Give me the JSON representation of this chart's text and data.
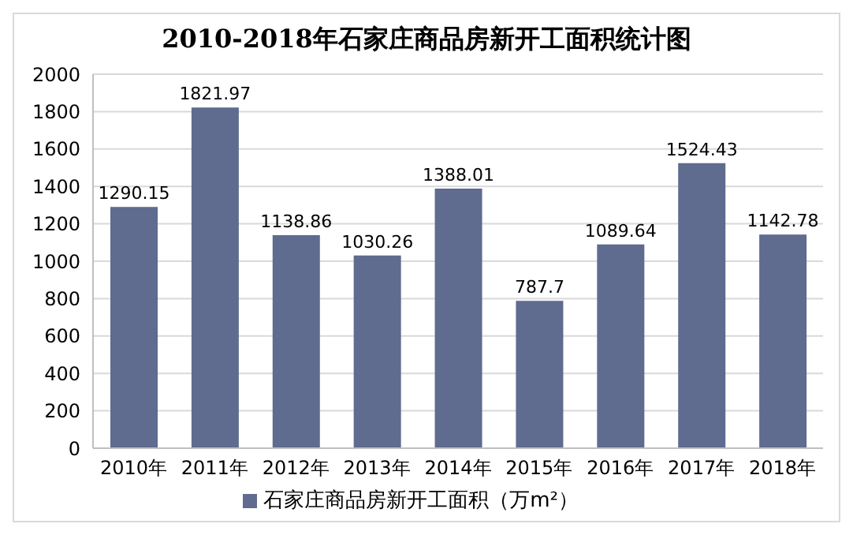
{
  "chart_data": {
    "type": "bar",
    "title": "2010-2018年石家庄商品房新开工面积统计图",
    "categories": [
      "2010年",
      "2011年",
      "2012年",
      "2013年",
      "2014年",
      "2015年",
      "2016年",
      "2017年",
      "2018年"
    ],
    "series": [
      {
        "name": "石家庄商品房新开工面积（万m²）",
        "color": "#5f6b8f",
        "values": [
          1290.15,
          1821.97,
          1138.86,
          1030.26,
          1388.01,
          787.7,
          1089.64,
          1524.43,
          1142.78
        ]
      }
    ],
    "ylim": [
      0,
      2000
    ],
    "yticks": [
      0,
      200,
      400,
      600,
      800,
      1000,
      1200,
      1400,
      1600,
      1800,
      2000
    ],
    "grid": "y",
    "legend": "bottom",
    "data_labels": true
  }
}
